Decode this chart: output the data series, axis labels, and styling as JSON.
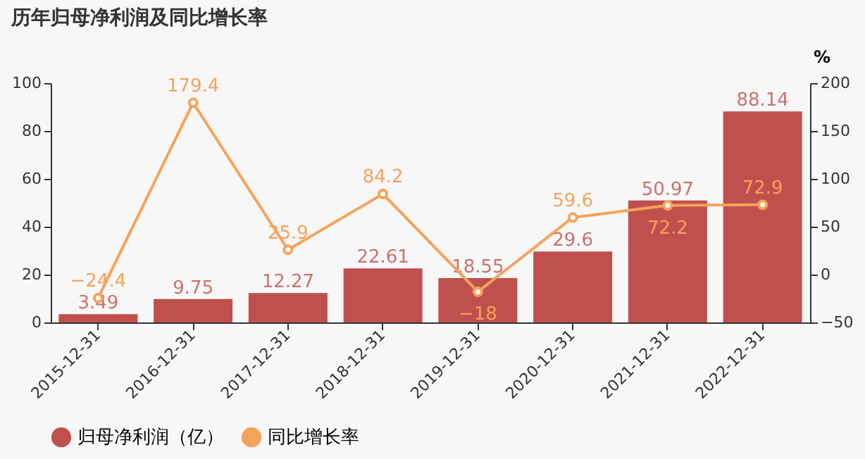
{
  "chart_data": {
    "type": "bar",
    "title": "历年归母净利润及同比增长率",
    "categories": [
      "2015-12-31",
      "2016-12-31",
      "2017-12-31",
      "2018-12-31",
      "2019-12-31",
      "2020-12-31",
      "2021-12-31",
      "2022-12-31"
    ],
    "series": [
      {
        "name": "归母净利润（亿）",
        "color": "#c0504d",
        "values": [
          3.49,
          9.75,
          12.27,
          22.61,
          18.55,
          29.6,
          50.97,
          88.14
        ]
      },
      {
        "name": "同比增长率",
        "type": "line",
        "axis": "y2",
        "color": "#f5a35b",
        "values": [
          -24.4,
          179.4,
          25.9,
          84.2,
          -18,
          59.6,
          72.2,
          72.9
        ]
      }
    ],
    "ylim": [
      0,
      100
    ],
    "yticks": [
      0,
      20,
      40,
      60,
      80,
      100
    ],
    "y2label": "%",
    "y2lim": [
      -50,
      200
    ],
    "y2ticks": [
      -50,
      0,
      50,
      100,
      150,
      200
    ],
    "data_labels": true,
    "marker": "circle",
    "legend": "bottom"
  }
}
